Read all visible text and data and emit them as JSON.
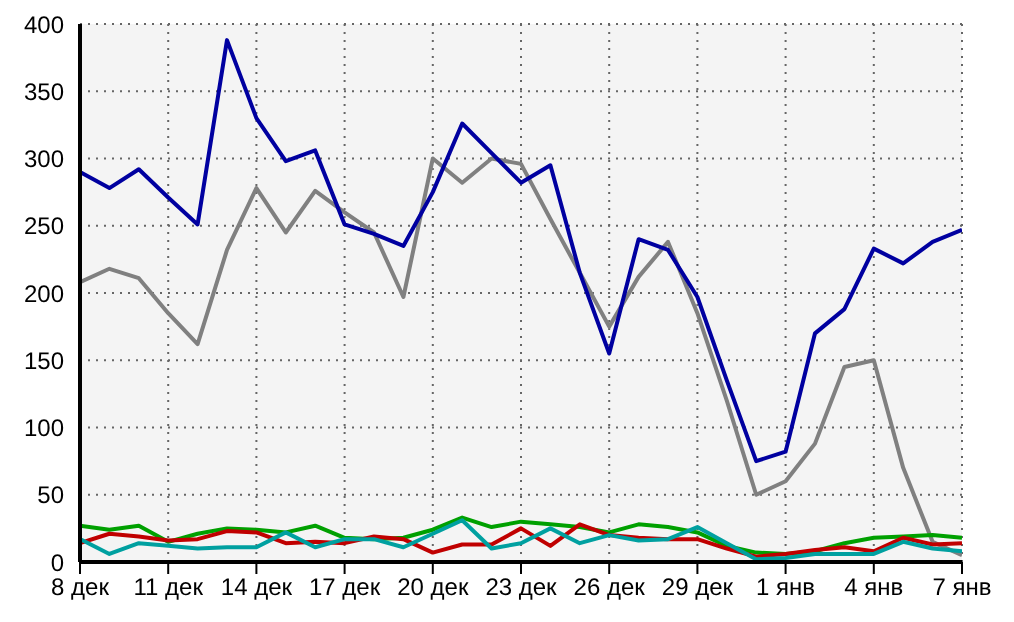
{
  "chart_data": {
    "type": "line",
    "categories": [
      "8 дек",
      null,
      null,
      "11 дек",
      null,
      null,
      "14 дек",
      null,
      null,
      "17 дек",
      null,
      null,
      "20 дек",
      null,
      null,
      "23 дек",
      null,
      null,
      "26 дек",
      null,
      null,
      "29 дек",
      null,
      null,
      "1 янв",
      null,
      null,
      "4 янв",
      null,
      null,
      "7 янв"
    ],
    "series": [
      {
        "color": "#808080",
        "values": [
          208,
          218,
          211,
          185,
          162,
          232,
          278,
          245,
          276,
          260,
          245,
          197,
          300,
          282,
          300,
          296,
          255,
          215,
          175,
          212,
          238,
          185,
          120,
          50,
          60,
          88,
          145,
          150,
          70,
          15,
          5
        ]
      },
      {
        "color": "#00a000",
        "values": [
          27,
          24,
          27,
          15,
          21,
          25,
          24,
          22,
          27,
          18,
          17,
          18,
          24,
          33,
          26,
          30,
          28,
          26,
          22,
          28,
          26,
          22,
          12,
          7,
          6,
          8,
          14,
          18,
          19,
          20,
          18
        ]
      },
      {
        "color": "#c00000",
        "values": [
          14,
          21,
          19,
          16,
          17,
          23,
          22,
          14,
          15,
          14,
          19,
          17,
          7,
          13,
          13,
          25,
          12,
          28,
          20,
          18,
          17,
          17,
          10,
          4,
          6,
          9,
          11,
          8,
          18,
          13,
          14
        ]
      },
      {
        "color": "#00a0a0",
        "values": [
          17,
          6,
          14,
          12,
          10,
          11,
          11,
          22,
          11,
          17,
          17,
          11,
          21,
          31,
          10,
          14,
          25,
          14,
          20,
          16,
          17,
          26,
          14,
          2,
          3,
          6,
          6,
          6,
          15,
          10,
          8
        ]
      },
      {
        "color": "#0000a0",
        "values": [
          290,
          278,
          292,
          271,
          251,
          388,
          330,
          298,
          306,
          251,
          244,
          235,
          275,
          326,
          304,
          282,
          295,
          215,
          155,
          240,
          232,
          197,
          135,
          75,
          82,
          170,
          188,
          233,
          222,
          238,
          247
        ]
      }
    ],
    "ylim": [
      0,
      400
    ],
    "yticks": [
      0,
      50,
      100,
      150,
      200,
      250,
      300,
      350,
      400
    ],
    "grid": true,
    "marker": "none",
    "line_style": "solid"
  }
}
